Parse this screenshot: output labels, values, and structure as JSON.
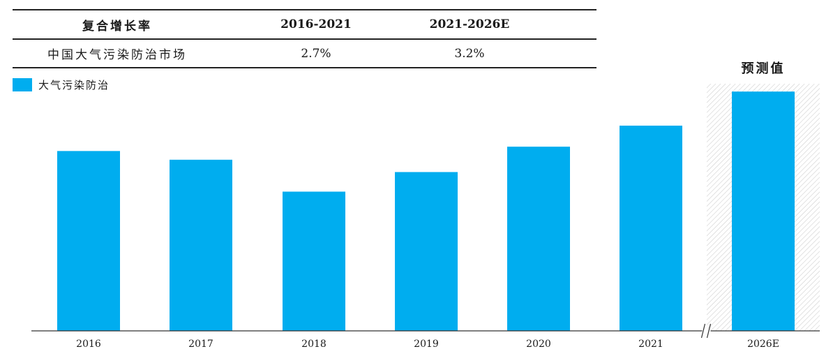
{
  "cagr_table": {
    "headers": [
      "复合增长率",
      "2016-2021",
      "2021-2026E"
    ],
    "rows": [
      {
        "label": "中国大气污染防治市场",
        "v1": "2.7%",
        "v2": "3.2%"
      }
    ]
  },
  "forecast_label": "预测值",
  "colors": {
    "bar": "#00ADEF",
    "forecast_hatch": "#cfcfcf",
    "axis": "#333333",
    "text": "#1a1a1a"
  },
  "chart_data": {
    "type": "bar",
    "categories": [
      "2016",
      "2017",
      "2018",
      "2019",
      "2020",
      "2021",
      "2026E"
    ],
    "series": [
      {
        "name": "大气污染防治",
        "values": [
          248,
          236,
          192,
          219,
          254,
          283,
          330
        ]
      }
    ],
    "forecast_categories": [
      "2026E"
    ],
    "axis_break_between": [
      "2021",
      "2026E"
    ],
    "ylim": [
      0,
      360
    ],
    "y_axis_visible": false,
    "grid": false,
    "legend_placement": "top-left"
  }
}
